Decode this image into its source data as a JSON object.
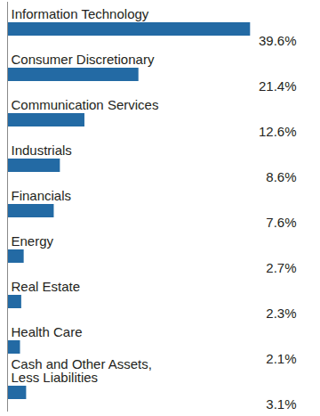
{
  "chart_data": {
    "type": "bar",
    "orientation": "horizontal",
    "categories": [
      "Information Technology",
      "Consumer Discretionary",
      "Communication Services",
      "Industrials",
      "Financials",
      "Energy",
      "Real Estate",
      "Health Care",
      "Cash and Other Assets, Less Liabilities"
    ],
    "values": [
      39.6,
      21.4,
      12.6,
      8.6,
      7.6,
      2.7,
      2.3,
      2.1,
      3.1
    ],
    "value_labels": [
      "39.6%",
      "21.4%",
      "12.6%",
      "8.6%",
      "7.6%",
      "2.7%",
      "2.3%",
      "2.1%",
      "3.1%"
    ],
    "color": "#236aa4",
    "xlim": [
      0,
      51
    ],
    "data_labels": true,
    "tick_labels": false,
    "grid": false
  }
}
